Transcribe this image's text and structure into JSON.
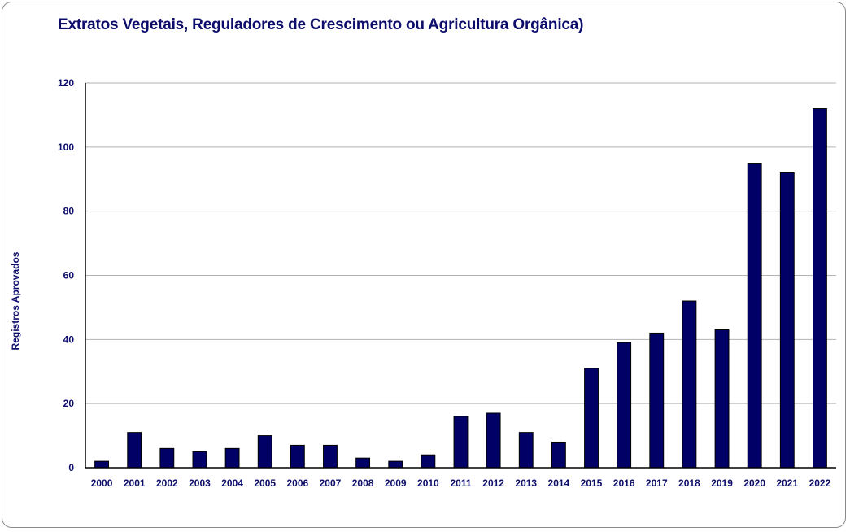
{
  "chart_data": {
    "type": "bar",
    "title": "Extratos Vegetais, Reguladores de Crescimento ou Agricultura Orgânica)",
    "xlabel": "",
    "ylabel": "Registros Aprovados",
    "ylim": [
      0,
      120
    ],
    "yticks": [
      0,
      20,
      40,
      60,
      80,
      100,
      120
    ],
    "grid": true,
    "legend": "none",
    "bar_color": "#000066",
    "text_color": "#0d0d6b",
    "categories": [
      "2000",
      "2001",
      "2002",
      "2003",
      "2004",
      "2005",
      "2006",
      "2007",
      "2008",
      "2009",
      "2010",
      "2011",
      "2012",
      "2013",
      "2014",
      "2015",
      "2016",
      "2017",
      "2018",
      "2019",
      "2020",
      "2021",
      "2022"
    ],
    "values": [
      2,
      11,
      6,
      5,
      6,
      10,
      7,
      7,
      3,
      2,
      4,
      16,
      17,
      11,
      8,
      31,
      39,
      42,
      52,
      43,
      95,
      92,
      112
    ]
  }
}
